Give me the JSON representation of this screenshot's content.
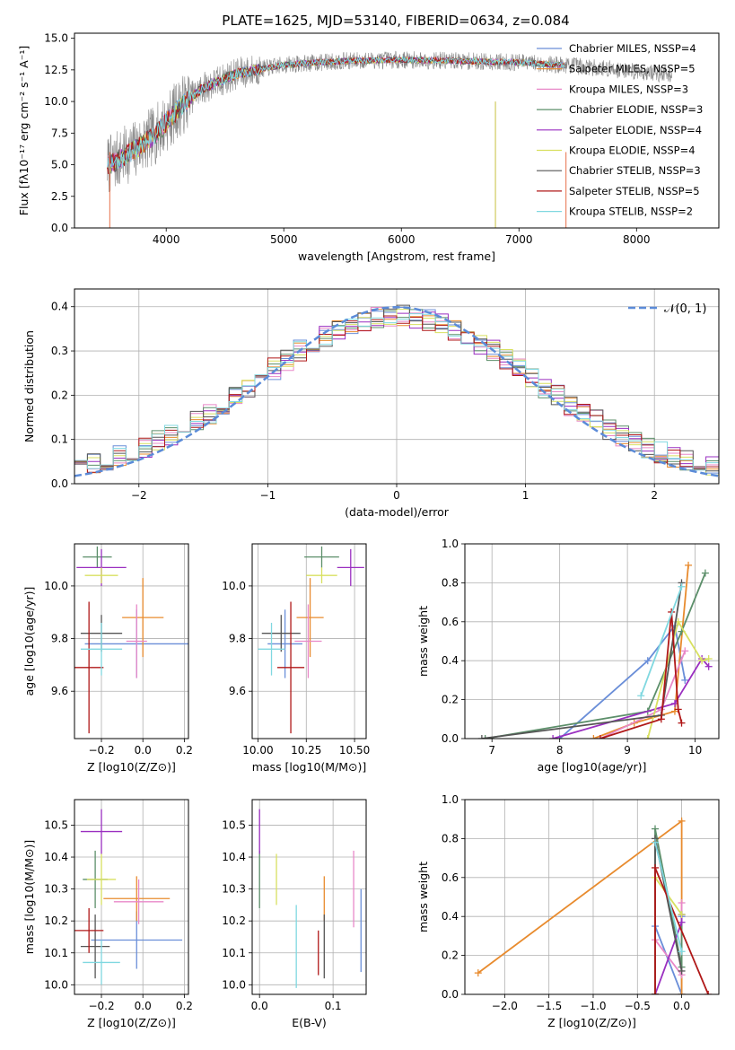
{
  "figure": {
    "title": "PLATE=1625, MJD=53140, FIBERID=0634, z=0.084"
  },
  "chart_data": [
    {
      "id": "spectrum",
      "type": "line",
      "title": "PLATE=1625, MJD=53140, FIBERID=0634, z=0.084",
      "xlabel": "wavelength [Angstrom, rest frame]",
      "ylabel": "Flux [fλ10⁻¹⁷ erg cm⁻² s⁻¹ A⁻¹]",
      "xlim": [
        3220,
        8700
      ],
      "ylim": [
        0,
        15.4
      ],
      "xticks": [
        4000,
        5000,
        6000,
        7000,
        8000
      ],
      "yticks": [
        0.0,
        2.5,
        5.0,
        7.5,
        10.0,
        12.5,
        15.0
      ],
      "ytick_labels": [
        "0.0",
        "2.5",
        "5.0",
        "7.5",
        "10.0",
        "12.5",
        "15.0"
      ],
      "grid": false,
      "legend_position": "right",
      "legend": [
        "Chabrier MILES, NSSP=4",
        "Salpeter MILES, NSSP=5",
        "Kroupa MILES, NSSP=3",
        "Chabrier ELODIE, NSSP=3",
        "Salpeter ELODIE, NSSP=4",
        "Kroupa ELODIE, NSSP=4",
        "Chabrier STELIB, NSSP=3",
        "Salpeter STELIB, NSSP=5",
        "Kroupa STELIB, NSSP=2"
      ],
      "continuum": {
        "x": [
          3520,
          3700,
          3900,
          4100,
          4300,
          4600,
          5000,
          5500,
          6000,
          6500,
          7000,
          7500,
          8000,
          8300
        ],
        "y": [
          5.0,
          6.0,
          7.3,
          9.4,
          11.0,
          12.2,
          12.9,
          13.2,
          13.3,
          13.2,
          13.1,
          12.8,
          12.4,
          12.1
        ]
      },
      "model_x_range": [
        3500,
        7400
      ],
      "data_x_range": [
        3500,
        8300
      ]
    },
    {
      "id": "residuals",
      "type": "bar",
      "xlabel": "(data-model)/error",
      "ylabel": "Normed distribution",
      "xlim": [
        -2.5,
        2.5
      ],
      "ylim": [
        0,
        0.44
      ],
      "xticks": [
        -2,
        -1,
        0,
        1,
        2
      ],
      "xtick_labels": [
        "−2",
        "−1",
        "0",
        "1",
        "2"
      ],
      "yticks": [
        0.0,
        0.1,
        0.2,
        0.3,
        0.4
      ],
      "ytick_labels": [
        "0.0",
        "0.1",
        "0.2",
        "0.3",
        "0.4"
      ],
      "grid": true,
      "bin_width": 0.1,
      "legend": [
        "𝒩(0, 1)"
      ],
      "legend_position": "top-right",
      "normal_curve": {
        "mean": 0,
        "sigma": 1
      }
    },
    {
      "id": "age-vs-Z",
      "type": "scatter",
      "xlabel": "Z [log10(Z/Z⊙)]",
      "ylabel": "age  [log10(age/yr)]",
      "xlim": [
        -0.33,
        0.22
      ],
      "ylim": [
        9.42,
        10.16
      ],
      "xticks": [
        -0.2,
        0.0,
        0.2
      ],
      "xtick_labels": [
        "−0.2",
        "0.0",
        "0.2"
      ],
      "yticks": [
        9.6,
        9.8,
        10.0
      ],
      "ytick_labels": [
        "9.6",
        "9.8",
        "10.0"
      ],
      "grid": true,
      "points": [
        {
          "x": -0.03,
          "y": 9.78,
          "xerr": 0.25,
          "yerr": 0.13
        },
        {
          "x": 0.0,
          "y": 9.88,
          "xerr": 0.1,
          "yerr": 0.15
        },
        {
          "x": -0.03,
          "y": 9.79,
          "xerr": 0.05,
          "yerr": 0.14
        },
        {
          "x": -0.22,
          "y": 10.11,
          "xerr": 0.07,
          "yerr": 0.04
        },
        {
          "x": -0.2,
          "y": 10.07,
          "xerr": 0.12,
          "yerr": 0.07
        },
        {
          "x": -0.2,
          "y": 10.04,
          "xerr": 0.08,
          "yerr": 0.03
        },
        {
          "x": -0.2,
          "y": 9.82,
          "xerr": 0.1,
          "yerr": 0.07
        },
        {
          "x": -0.26,
          "y": 9.69,
          "xerr": 0.07,
          "yerr": 0.25
        },
        {
          "x": -0.2,
          "y": 9.76,
          "xerr": 0.1,
          "yerr": 0.1
        }
      ]
    },
    {
      "id": "age-vs-mass",
      "type": "scatter",
      "xlabel": "mass [log10(M/M⊙)]",
      "ylabel": "",
      "xlim": [
        9.97,
        10.56
      ],
      "ylim": [
        9.42,
        10.16
      ],
      "xticks": [
        10.0,
        10.25,
        10.5
      ],
      "xtick_labels": [
        "10.00",
        "10.25",
        "10.50"
      ],
      "yticks": [
        9.6,
        9.8,
        10.0
      ],
      "ytick_labels": [
        "9.6",
        "9.8",
        "10.0"
      ],
      "grid": true,
      "points": [
        {
          "x": 10.14,
          "y": 9.78,
          "xerr": 0.09,
          "yerr": 0.13
        },
        {
          "x": 10.27,
          "y": 9.88,
          "xerr": 0.07,
          "yerr": 0.15
        },
        {
          "x": 10.26,
          "y": 9.79,
          "xerr": 0.07,
          "yerr": 0.14
        },
        {
          "x": 10.33,
          "y": 10.11,
          "xerr": 0.09,
          "yerr": 0.04
        },
        {
          "x": 10.48,
          "y": 10.07,
          "xerr": 0.07,
          "yerr": 0.07
        },
        {
          "x": 10.33,
          "y": 10.04,
          "xerr": 0.08,
          "yerr": 0.03
        },
        {
          "x": 10.12,
          "y": 9.82,
          "xerr": 0.1,
          "yerr": 0.07
        },
        {
          "x": 10.17,
          "y": 9.69,
          "xerr": 0.07,
          "yerr": 0.25
        },
        {
          "x": 10.07,
          "y": 9.76,
          "xerr": 0.07,
          "yerr": 0.1
        }
      ]
    },
    {
      "id": "weight-vs-age",
      "type": "line",
      "xlabel": "age  [log10(age/yr)]",
      "ylabel": "mass weight",
      "xlim": [
        6.6,
        10.35
      ],
      "ylim": [
        0,
        1.0
      ],
      "xticks": [
        7,
        8,
        9,
        10
      ],
      "xtick_labels": [
        "7",
        "8",
        "9",
        "10"
      ],
      "yticks": [
        0.0,
        0.2,
        0.4,
        0.6,
        0.8,
        1.0
      ],
      "ytick_labels": [
        "0.0",
        "0.2",
        "0.4",
        "0.6",
        "0.8",
        "1.0"
      ],
      "grid": true,
      "series": [
        {
          "x": [
            8.0,
            9.3,
            9.7,
            9.85
          ],
          "y": [
            0.0,
            0.4,
            0.58,
            0.3
          ]
        },
        {
          "x": [
            8.5,
            9.1,
            9.7,
            9.9
          ],
          "y": [
            0.0,
            0.08,
            0.14,
            0.89
          ]
        },
        {
          "x": [
            8.6,
            9.5,
            9.85
          ],
          "y": [
            0.0,
            0.15,
            0.45
          ]
        },
        {
          "x": [
            6.9,
            9.3,
            9.8,
            10.15
          ],
          "y": [
            0.0,
            0.14,
            0.55,
            0.85
          ]
        },
        {
          "x": [
            7.9,
            9.7,
            10.1,
            10.2
          ],
          "y": [
            0.0,
            0.18,
            0.41,
            0.37
          ]
        },
        {
          "x": [
            9.3,
            9.75,
            10.1,
            10.2
          ],
          "y": [
            0.0,
            0.6,
            0.4,
            0.41
          ]
        },
        {
          "x": [
            6.85,
            9.5,
            9.8
          ],
          "y": [
            0.0,
            0.12,
            0.8
          ]
        },
        {
          "x": [
            8.6,
            9.5,
            9.65,
            9.75,
            9.8
          ],
          "y": [
            0.0,
            0.1,
            0.65,
            0.15,
            0.08
          ]
        },
        {
          "x": [
            9.2,
            9.8
          ],
          "y": [
            0.22,
            0.78
          ]
        }
      ]
    },
    {
      "id": "mass-vs-Z",
      "type": "scatter",
      "xlabel": "Z [log10(Z/Z⊙)]",
      "ylabel": "mass [log10(M/M⊙)]",
      "xlim": [
        -0.33,
        0.22
      ],
      "ylim": [
        9.97,
        10.58
      ],
      "xticks": [
        -0.2,
        0.0,
        0.2
      ],
      "xtick_labels": [
        "−0.2",
        "0.0",
        "0.2"
      ],
      "yticks": [
        10.0,
        10.1,
        10.2,
        10.3,
        10.4,
        10.5
      ],
      "ytick_labels": [
        "10.0",
        "10.1",
        "10.2",
        "10.3",
        "10.4",
        "10.5"
      ],
      "grid": true,
      "points": [
        {
          "x": -0.03,
          "y": 10.14,
          "xerr": 0.22,
          "yerr": 0.09
        },
        {
          "x": -0.03,
          "y": 10.27,
          "xerr": 0.16,
          "yerr": 0.07
        },
        {
          "x": -0.02,
          "y": 10.26,
          "xerr": 0.12,
          "yerr": 0.07
        },
        {
          "x": -0.23,
          "y": 10.33,
          "xerr": 0.06,
          "yerr": 0.09
        },
        {
          "x": -0.2,
          "y": 10.48,
          "xerr": 0.1,
          "yerr": 0.07
        },
        {
          "x": -0.2,
          "y": 10.33,
          "xerr": 0.07,
          "yerr": 0.08
        },
        {
          "x": -0.23,
          "y": 10.12,
          "xerr": 0.07,
          "yerr": 0.1
        },
        {
          "x": -0.26,
          "y": 10.17,
          "xerr": 0.07,
          "yerr": 0.07
        },
        {
          "x": -0.2,
          "y": 10.07,
          "xerr": 0.09,
          "yerr": 0.07
        }
      ]
    },
    {
      "id": "mass-vs-EBV",
      "type": "scatter",
      "xlabel": "E(B-V)",
      "ylabel": "",
      "xlim": [
        -0.01,
        0.145
      ],
      "ylim": [
        9.97,
        10.58
      ],
      "xticks": [
        0.0,
        0.1
      ],
      "xtick_labels": [
        "0.0",
        "0.1"
      ],
      "yticks": [
        10.0,
        10.1,
        10.2,
        10.3,
        10.4,
        10.5
      ],
      "ytick_labels": [
        "10.0",
        "10.1",
        "10.2",
        "10.3",
        "10.4",
        "10.5"
      ],
      "grid": true,
      "points": [
        {
          "x": 0.138,
          "y": 10.17,
          "xerr": 0.0,
          "yerr": 0.13
        },
        {
          "x": 0.088,
          "y": 10.27,
          "xerr": 0.0,
          "yerr": 0.07
        },
        {
          "x": 0.128,
          "y": 10.3,
          "xerr": 0.0,
          "yerr": 0.12
        },
        {
          "x": 0.0,
          "y": 10.33,
          "xerr": 0.0,
          "yerr": 0.09
        },
        {
          "x": 0.0,
          "y": 10.48,
          "xerr": 0.0,
          "yerr": 0.07
        },
        {
          "x": 0.023,
          "y": 10.33,
          "xerr": 0.0,
          "yerr": 0.08
        },
        {
          "x": 0.088,
          "y": 10.12,
          "xerr": 0.0,
          "yerr": 0.1
        },
        {
          "x": 0.08,
          "y": 10.1,
          "xerr": 0.0,
          "yerr": 0.07
        },
        {
          "x": 0.05,
          "y": 10.12,
          "xerr": 0.0,
          "yerr": 0.13
        }
      ]
    },
    {
      "id": "weight-vs-Z",
      "type": "line",
      "xlabel": "Z [log10(Z/Z⊙)]",
      "ylabel": "mass weight",
      "xlim": [
        -2.45,
        0.42
      ],
      "ylim": [
        0,
        1.0
      ],
      "xticks": [
        -2.0,
        -1.5,
        -1.0,
        -0.5,
        0.0
      ],
      "xtick_labels": [
        "−2.0",
        "−1.5",
        "−1.0",
        "−0.5",
        "0.0"
      ],
      "yticks": [
        0.0,
        0.2,
        0.4,
        0.6,
        0.8,
        1.0
      ],
      "ytick_labels": [
        "0.0",
        "0.2",
        "0.4",
        "0.6",
        "0.8",
        "1.0"
      ],
      "grid": true,
      "series": [
        {
          "x": [
            -0.3,
            0.0,
            0.0
          ],
          "y": [
            0.35,
            0.0,
            0.4
          ]
        },
        {
          "x": [
            -2.3,
            0.0,
            0.0
          ],
          "y": [
            0.11,
            0.89,
            0.0
          ]
        },
        {
          "x": [
            -0.3,
            0.0,
            0.0
          ],
          "y": [
            0.28,
            0.1,
            0.47
          ]
        },
        {
          "x": [
            -0.3,
            -0.3,
            0.0,
            0.0
          ],
          "y": [
            0.0,
            0.85,
            0.14,
            0.41
          ]
        },
        {
          "x": [
            -0.3,
            0.0,
            0.0
          ],
          "y": [
            0.0,
            0.37,
            0.41
          ]
        },
        {
          "x": [
            -0.3,
            -0.3,
            0.0
          ],
          "y": [
            0.0,
            0.6,
            0.41
          ]
        },
        {
          "x": [
            -0.3,
            -0.3,
            0.0
          ],
          "y": [
            0.0,
            0.8,
            0.12
          ]
        },
        {
          "x": [
            -0.3,
            -0.3,
            0.3
          ],
          "y": [
            0.0,
            0.65,
            0.0
          ]
        },
        {
          "x": [
            -0.3,
            0.0
          ],
          "y": [
            0.78,
            0.22
          ]
        }
      ]
    }
  ],
  "series_colors": [
    "#6a8ed8",
    "#e88b2e",
    "#e888c8",
    "#5c8f6a",
    "#9a2fc0",
    "#d8e060",
    "#555555",
    "#b01818",
    "#80d8e0"
  ],
  "spectrum_data_color": "#888888",
  "normal_curve_color": "#5b8bd8"
}
